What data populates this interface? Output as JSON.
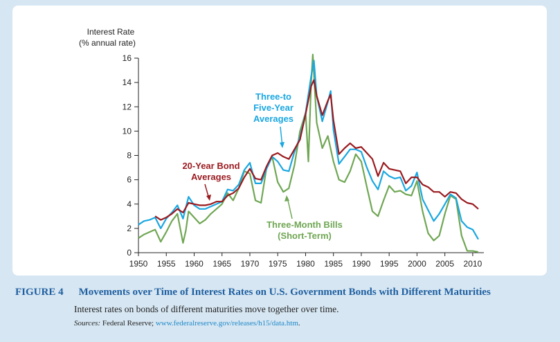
{
  "chart_data": {
    "type": "line",
    "ylabel": [
      "Interest Rate",
      "(% annual rate)"
    ],
    "xlim": [
      1950,
      2012
    ],
    "ylim": [
      0,
      16
    ],
    "xticks": [
      1950,
      1955,
      1960,
      1965,
      1970,
      1975,
      1980,
      1985,
      1990,
      1995,
      2000,
      2005,
      2010
    ],
    "yticks": [
      0,
      2,
      4,
      6,
      8,
      10,
      12,
      14,
      16
    ],
    "series": [
      {
        "name": "Three-Month Bills (Short-Term)",
        "color": "#6fa653",
        "x": [
          1950,
          1951,
          1952,
          1953,
          1954,
          1955,
          1956,
          1957,
          1958,
          1958.5,
          1959,
          1960,
          1961,
          1962,
          1963,
          1964,
          1965,
          1966,
          1967,
          1968,
          1969,
          1970,
          1971,
          1972,
          1973,
          1974,
          1975,
          1976,
          1977,
          1978,
          1979,
          1980,
          1980.5,
          1981,
          1981.3,
          1982,
          1983,
          1984,
          1985,
          1986,
          1987,
          1988,
          1989,
          1990,
          1991,
          1992,
          1993,
          1994,
          1995,
          1996,
          1997,
          1998,
          1999,
          2000,
          2001,
          2002,
          2003,
          2004,
          2005,
          2006,
          2007,
          2008,
          2009,
          2010,
          2011
        ],
        "values": [
          1.2,
          1.5,
          1.7,
          1.9,
          0.9,
          1.7,
          2.6,
          3.2,
          0.8,
          1.8,
          3.4,
          2.9,
          2.4,
          2.7,
          3.2,
          3.6,
          4.0,
          4.9,
          4.3,
          5.3,
          6.7,
          6.5,
          4.3,
          4.1,
          7.0,
          7.9,
          5.8,
          5.0,
          5.3,
          7.2,
          10.0,
          11.5,
          7.5,
          14.0,
          16.3,
          10.7,
          8.6,
          9.6,
          7.5,
          6.0,
          5.8,
          6.7,
          8.1,
          7.5,
          5.4,
          3.4,
          3.0,
          4.3,
          5.5,
          5.0,
          5.1,
          4.8,
          4.7,
          5.9,
          3.4,
          1.6,
          1.0,
          1.4,
          3.2,
          4.7,
          4.4,
          1.4,
          0.15,
          0.14,
          0.05
        ]
      },
      {
        "name": "Three-to Five-Year Averages",
        "color": "#1aa7e0",
        "x": [
          1950,
          1951,
          1952,
          1953,
          1954,
          1955,
          1956,
          1957,
          1958,
          1959,
          1960,
          1961,
          1962,
          1963,
          1964,
          1965,
          1966,
          1967,
          1968,
          1969,
          1970,
          1971,
          1972,
          1973,
          1974,
          1975,
          1976,
          1977,
          1978,
          1979,
          1980,
          1981,
          1981.5,
          1982,
          1983,
          1984,
          1984.5,
          1985,
          1986,
          1987,
          1988,
          1989,
          1990,
          1991,
          1992,
          1993,
          1994,
          1995,
          1996,
          1997,
          1998,
          1999,
          2000,
          2001,
          2002,
          2003,
          2004,
          2005,
          2006,
          2007,
          2008,
          2009,
          2010,
          2011
        ],
        "values": [
          2.3,
          2.6,
          2.7,
          2.9,
          2.0,
          2.8,
          3.3,
          3.9,
          2.8,
          4.6,
          3.9,
          3.6,
          3.6,
          3.8,
          4.0,
          4.2,
          5.2,
          5.1,
          5.6,
          6.8,
          7.4,
          5.7,
          5.7,
          6.9,
          7.9,
          7.5,
          6.8,
          6.7,
          8.3,
          9.5,
          11.5,
          14.5,
          15.8,
          12.9,
          10.8,
          12.4,
          13.3,
          10.1,
          7.3,
          7.9,
          8.5,
          8.5,
          8.3,
          7.0,
          5.9,
          5.2,
          6.7,
          6.3,
          6.1,
          6.2,
          5.1,
          5.5,
          6.6,
          4.4,
          3.5,
          2.6,
          3.2,
          4.0,
          4.8,
          4.5,
          2.6,
          2.1,
          1.9,
          1.1
        ]
      },
      {
        "name": "20-Year Bond Averages",
        "color": "#9a1a1f",
        "x": [
          1953,
          1954,
          1955,
          1956,
          1957,
          1958,
          1959,
          1960,
          1961,
          1962,
          1963,
          1964,
          1965,
          1966,
          1967,
          1968,
          1969,
          1970,
          1971,
          1972,
          1973,
          1974,
          1975,
          1976,
          1977,
          1978,
          1979,
          1980,
          1981,
          1981.5,
          1982,
          1983,
          1984,
          1984.5,
          1985,
          1986,
          1987,
          1988,
          1989,
          1990,
          1991,
          1992,
          1993,
          1994,
          1995,
          1996,
          1997,
          1998,
          1999,
          2000,
          2001,
          2002,
          2003,
          2004,
          2005,
          2006,
          2007,
          2008,
          2009,
          2010,
          2011
        ],
        "values": [
          3.0,
          2.7,
          2.9,
          3.2,
          3.6,
          3.3,
          4.1,
          4.0,
          3.9,
          3.9,
          4.0,
          4.2,
          4.2,
          4.7,
          4.9,
          5.3,
          6.2,
          6.9,
          6.1,
          6.0,
          7.1,
          8.0,
          8.2,
          7.9,
          7.7,
          8.5,
          9.3,
          11.4,
          13.7,
          14.2,
          12.9,
          11.3,
          12.5,
          13.0,
          10.9,
          8.1,
          8.6,
          9.0,
          8.6,
          8.7,
          8.2,
          7.7,
          6.3,
          7.4,
          6.9,
          6.8,
          6.7,
          5.7,
          6.2,
          6.2,
          5.6,
          5.4,
          5.0,
          5.0,
          4.6,
          5.0,
          4.9,
          4.4,
          4.1,
          4.0,
          3.6
        ]
      }
    ],
    "annotations": [
      {
        "lines": [
          "Three-to",
          "Five-Year",
          "Averages"
        ],
        "color": "#1aa7e0"
      },
      {
        "lines": [
          "20-Year Bond",
          "Averages"
        ],
        "color": "#9a1a1f"
      },
      {
        "lines": [
          "Three-Month Bills",
          "(Short-Term)"
        ],
        "color": "#6fa653"
      }
    ]
  },
  "caption": {
    "label": "FIGURE 4",
    "title": "Movements over Time of Interest Rates on U.S. Government Bonds with Different Maturities",
    "description": "Interest rates on bonds of different maturities move together over time.",
    "sources_label": "Sources:",
    "sources_text": "Federal Reserve;",
    "sources_link": "www.federalreserve.gov/releases/h15/data.htm",
    "sources_end": "."
  }
}
